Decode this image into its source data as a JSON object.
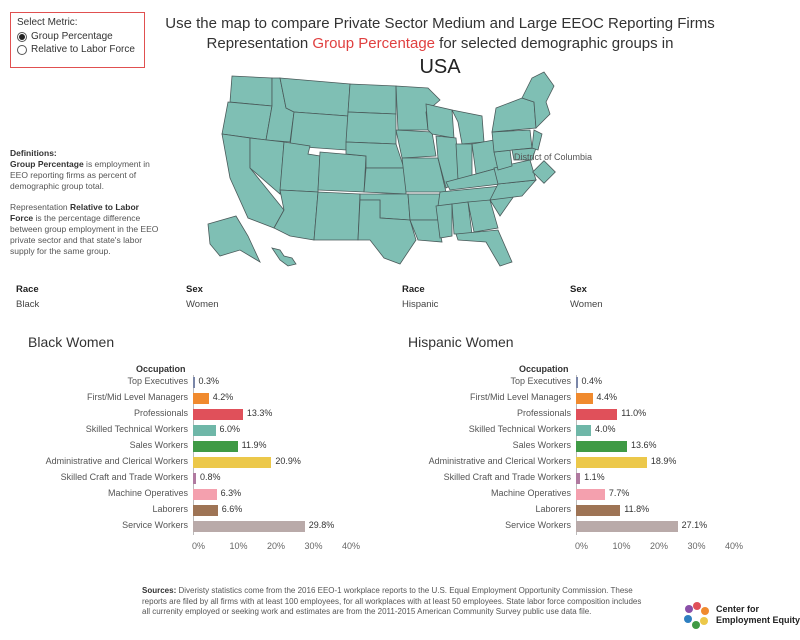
{
  "metric": {
    "label": "Select Metric:",
    "options": [
      "Group Percentage",
      "Relative to Labor Force"
    ],
    "selected": 0
  },
  "title": {
    "line1": "Use the map to compare Private Sector Medium and Large EEOC Reporting Firms",
    "line2_pre": "Representation ",
    "line2_highlight": "Group Percentage",
    "line2_post": " for selected demographic groups in",
    "region": "USA"
  },
  "definitions": {
    "heading": "Definitions:",
    "p1_bold": "Group Percentage",
    "p1_rest": " is employment in EEO reporting firms as percent of demographic group total.",
    "p2_pre": "Representation ",
    "p2_bold": "Relative to Labor Force",
    "p2_rest": " is the percentage difference between group employment in the EEO private sector and that state's labor supply for the same group."
  },
  "map": {
    "dc_label": "District of Columbia",
    "state_color": "#7fbfb4",
    "border_color": "#4a5a5a"
  },
  "filters": [
    {
      "header": "Race",
      "value": "Black"
    },
    {
      "header": "Sex",
      "value": "Women"
    },
    {
      "header": "Race",
      "value": "Hispanic"
    },
    {
      "header": "Sex",
      "value": "Women"
    }
  ],
  "occupation_header": "Occupation",
  "axis_ticks": [
    "0%",
    "10%",
    "20%",
    "30%",
    "40%"
  ],
  "chart_data": [
    {
      "type": "bar",
      "title": "Black Women",
      "categories": [
        "Top Executives",
        "First/Mid Level Managers",
        "Professionals",
        "Skilled Technical Workers",
        "Sales Workers",
        "Administrative and Clerical Workers",
        "Skilled Craft and Trade Workers",
        "Machine Operatives",
        "Laborers",
        "Service Workers"
      ],
      "values": [
        0.3,
        4.2,
        13.3,
        6.0,
        11.9,
        20.9,
        0.8,
        6.3,
        6.6,
        29.8
      ],
      "labels": [
        "0.3%",
        "4.2%",
        "13.3%",
        "6.0%",
        "11.9%",
        "20.9%",
        "0.8%",
        "6.3%",
        "6.6%",
        "29.8%"
      ],
      "colors": [
        "#7a86a8",
        "#f08a2e",
        "#e0505a",
        "#6fb7a8",
        "#3f9a45",
        "#ecc84a",
        "#b07aa0",
        "#f4a0ae",
        "#9e7455",
        "#b9aaa9"
      ],
      "xlim": [
        0,
        40
      ]
    },
    {
      "type": "bar",
      "title": "Hispanic Women",
      "categories": [
        "Top Executives",
        "First/Mid Level Managers",
        "Professionals",
        "Skilled Technical Workers",
        "Sales Workers",
        "Administrative and Clerical Workers",
        "Skilled Craft and Trade Workers",
        "Machine Operatives",
        "Laborers",
        "Service Workers"
      ],
      "values": [
        0.4,
        4.4,
        11.0,
        4.0,
        13.6,
        18.9,
        1.1,
        7.7,
        11.8,
        27.1
      ],
      "labels": [
        "0.4%",
        "4.4%",
        "11.0%",
        "4.0%",
        "13.6%",
        "18.9%",
        "1.1%",
        "7.7%",
        "11.8%",
        "27.1%"
      ],
      "colors": [
        "#7a86a8",
        "#f08a2e",
        "#e0505a",
        "#6fb7a8",
        "#3f9a45",
        "#ecc84a",
        "#b07aa0",
        "#f4a0ae",
        "#9e7455",
        "#b9aaa9"
      ],
      "xlim": [
        0,
        40
      ]
    }
  ],
  "sources": {
    "bold": "Sources:",
    "text": " Diveristy statistics come from the 2016 EEO-1 workplace reports to the U.S. Equal Employment Opportunity Commission. These reports are filed by all firms with at least 100 employees, for all workplaces with at least 50 employees. State labor force composition includes all currenity employed or seeking work and estimates are from the 2011-2015 American Community Survey public use data file."
  },
  "logo": {
    "line1": "Center for",
    "line2": "Employment Equity"
  }
}
